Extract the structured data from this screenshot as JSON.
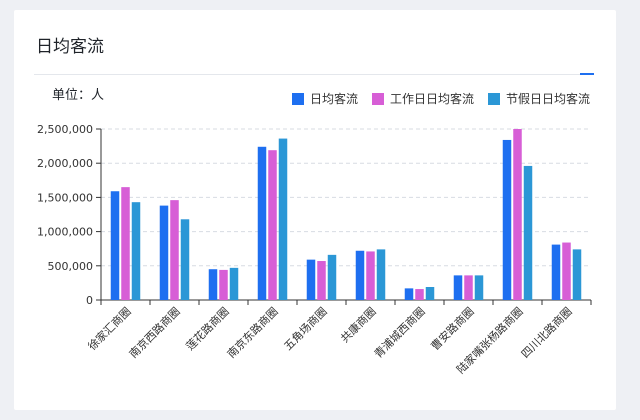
{
  "title": "日均客流",
  "unit_label": "单位：人",
  "legend_colors": [
    "#1e6ff0",
    "#d75ed6",
    "#2b97d6"
  ],
  "chart_data": {
    "type": "bar",
    "title": "",
    "xlabel": "",
    "ylabel": "",
    "ylim": [
      0,
      2500000
    ],
    "yticks": [
      0,
      500000,
      1000000,
      1500000,
      2000000,
      2500000
    ],
    "ytick_labels": [
      "0",
      "500,000",
      "1,000,000",
      "1,500,000",
      "2,000,000",
      "2,500,000"
    ],
    "grid": true,
    "legend": "top-right",
    "categories": [
      "徐家汇商圈",
      "南京西路商圈",
      "莲花路商圈",
      "南京东路商圈",
      "五角场商圈",
      "共康商圈",
      "青浦城西商圈",
      "曹安路商圈",
      "陆家嘴张杨路商圈",
      "四川北路商圈"
    ],
    "series": [
      {
        "name": "日均客流",
        "color": "#1e6ff0",
        "values": [
          1590000,
          1380000,
          450000,
          2240000,
          590000,
          720000,
          170000,
          360000,
          2340000,
          810000
        ]
      },
      {
        "name": "工作日日均客流",
        "color": "#d75ed6",
        "values": [
          1650000,
          1460000,
          440000,
          2190000,
          570000,
          710000,
          160000,
          360000,
          2500000,
          840000
        ]
      },
      {
        "name": "节假日日均客流",
        "color": "#2b97d6",
        "values": [
          1430000,
          1180000,
          470000,
          2360000,
          660000,
          740000,
          190000,
          360000,
          1960000,
          740000
        ]
      }
    ]
  }
}
